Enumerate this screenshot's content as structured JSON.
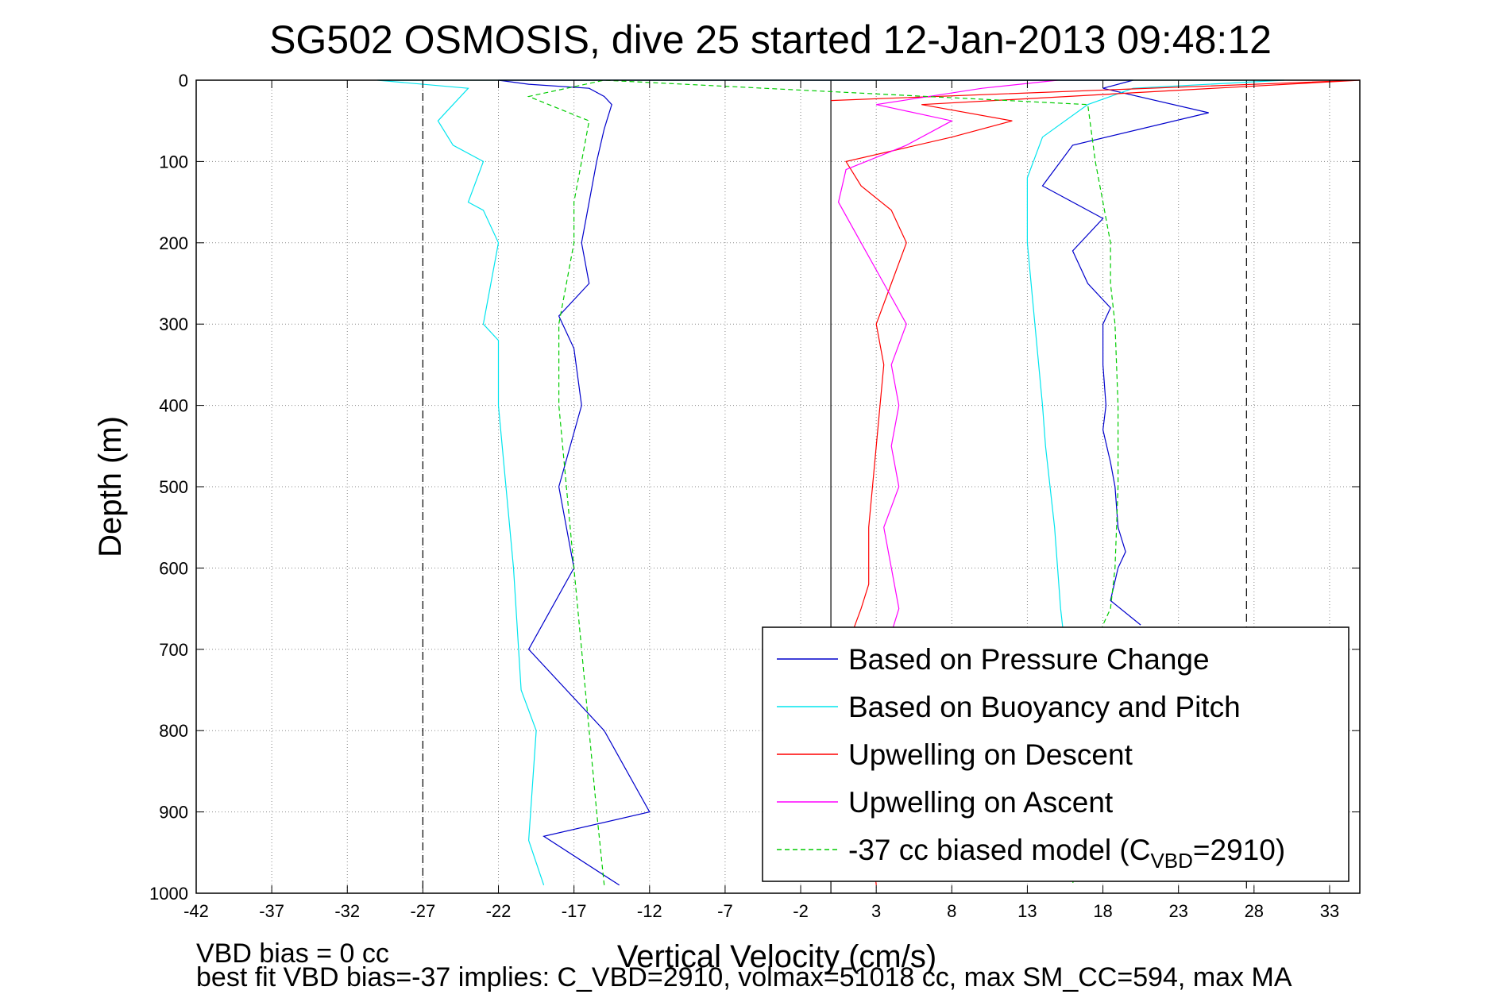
{
  "chart_data": {
    "type": "line",
    "title": "SG502 OSMOSIS, dive 25 started 12-Jan-2013 09:48:12",
    "xlabel": "Vertical Velocity (cm/s)",
    "ylabel": "Depth (m)",
    "xlim": [
      -42,
      35
    ],
    "ylim": [
      0,
      1000
    ],
    "y_reversed": true,
    "grid": true,
    "x_ticks": [
      -42,
      -37,
      -32,
      -27,
      -22,
      -17,
      -12,
      -7,
      -2,
      3,
      8,
      13,
      18,
      23,
      28,
      33
    ],
    "y_ticks": [
      0,
      100,
      200,
      300,
      400,
      500,
      600,
      700,
      800,
      900,
      1000
    ],
    "legend_position": "bottom-right",
    "reference_lines": [
      {
        "x": -27,
        "style": "dashed",
        "color": "#000000"
      },
      {
        "x": 27.5,
        "style": "dashed",
        "color": "#000000"
      },
      {
        "x": 0,
        "style": "solid",
        "color": "#000000"
      }
    ],
    "series": [
      {
        "name": "Based on Pressure Change",
        "color": "#0000cc",
        "style": "solid",
        "x": [
          -14,
          -19,
          -12,
          -15,
          -20,
          -17,
          -18,
          -16.5,
          -17,
          -18,
          -16,
          -16.5,
          -16,
          -15.5,
          -15,
          -14.5,
          -15,
          -16,
          -20,
          -22,
          20,
          18,
          25,
          16,
          14,
          18,
          16,
          17,
          18.5,
          18,
          18,
          18.2,
          18,
          18.5,
          18.8,
          19,
          19.5,
          19,
          18.5,
          20.5
        ],
        "y": [
          990,
          930,
          900,
          800,
          700,
          600,
          500,
          400,
          330,
          290,
          250,
          200,
          150,
          100,
          60,
          30,
          20,
          10,
          5,
          0,
          0,
          10,
          40,
          80,
          130,
          170,
          210,
          250,
          280,
          300,
          350,
          400,
          430,
          470,
          500,
          550,
          580,
          600,
          640,
          670
        ]
      },
      {
        "name": "Based on Buoyancy and Pitch",
        "color": "#00e5ee",
        "style": "solid",
        "x": [
          -19,
          -20,
          -19.5,
          -20.5,
          -21,
          -21.5,
          -22,
          -22,
          -23,
          -22,
          -23,
          -24,
          -23,
          -25,
          -26,
          -25,
          -24,
          -30,
          30,
          20,
          17,
          14,
          13,
          13,
          13.5,
          14,
          14.2,
          14.5,
          14.8,
          15,
          15.2,
          15.5
        ],
        "y": [
          990,
          935,
          800,
          750,
          600,
          500,
          400,
          320,
          300,
          200,
          160,
          150,
          100,
          80,
          50,
          30,
          10,
          0,
          0,
          10,
          30,
          70,
          120,
          200,
          300,
          400,
          450,
          500,
          550,
          600,
          650,
          700
        ]
      },
      {
        "name": "Upwelling on Descent",
        "color": "#ff0000",
        "style": "solid",
        "x": [
          3,
          2.5,
          1.5,
          1,
          2,
          2.5,
          2.5,
          3,
          3.5,
          3,
          4,
          5,
          4,
          2,
          1,
          8,
          12,
          6,
          35,
          0
        ],
        "y": [
          990,
          900,
          800,
          700,
          650,
          620,
          550,
          450,
          350,
          300,
          250,
          200,
          160,
          130,
          100,
          70,
          50,
          30,
          0,
          25
        ]
      },
      {
        "name": "Upwelling on Ascent",
        "color": "#ff00ff",
        "style": "solid",
        "x": [
          4,
          4.5,
          4,
          3.5,
          4.5,
          4,
          4.5,
          4,
          5,
          3.5,
          2,
          0.5,
          1,
          5,
          8,
          3,
          10,
          15
        ],
        "y": [
          680,
          650,
          600,
          550,
          500,
          450,
          400,
          350,
          300,
          250,
          200,
          150,
          110,
          80,
          50,
          30,
          10,
          0
        ]
      },
      {
        "name": "-37 cc biased model (C_VBD=2910)",
        "color": "#00cc00",
        "style": "dashed",
        "x": [
          -15,
          -15.5,
          -16,
          -16.5,
          -17,
          -17.5,
          -18,
          -18,
          -17.5,
          -17,
          -17,
          -16.5,
          -16,
          -20,
          -15,
          17,
          17.5,
          18,
          18.5,
          18.5,
          18.8,
          19,
          19,
          18.8,
          18.5,
          18,
          17.5,
          16
        ],
        "y": [
          990,
          900,
          800,
          700,
          600,
          500,
          400,
          300,
          250,
          200,
          150,
          100,
          50,
          20,
          0,
          30,
          100,
          150,
          200,
          250,
          300,
          400,
          500,
          600,
          650,
          670,
          700,
          990
        ]
      }
    ],
    "legend_entries": [
      {
        "label": "Based on Pressure Change",
        "color": "#0000cc",
        "style": "solid"
      },
      {
        "label": "Based on Buoyancy and Pitch",
        "color": "#00e5ee",
        "style": "solid"
      },
      {
        "label": "Upwelling on Descent",
        "color": "#ff0000",
        "style": "solid"
      },
      {
        "label": "Upwelling on Ascent",
        "color": "#ff00ff",
        "style": "solid"
      },
      {
        "label_prefix": "-37 cc biased model (C",
        "label_sub": "VBD",
        "label_suffix": "=2910)",
        "color": "#00cc00",
        "style": "dashed"
      }
    ]
  },
  "footer": {
    "line1": "VBD bias = 0 cc",
    "line2": "best fit VBD bias=-37 implies: C_VBD=2910, volmax=51018 cc, max SM_CC=594, max MA"
  }
}
